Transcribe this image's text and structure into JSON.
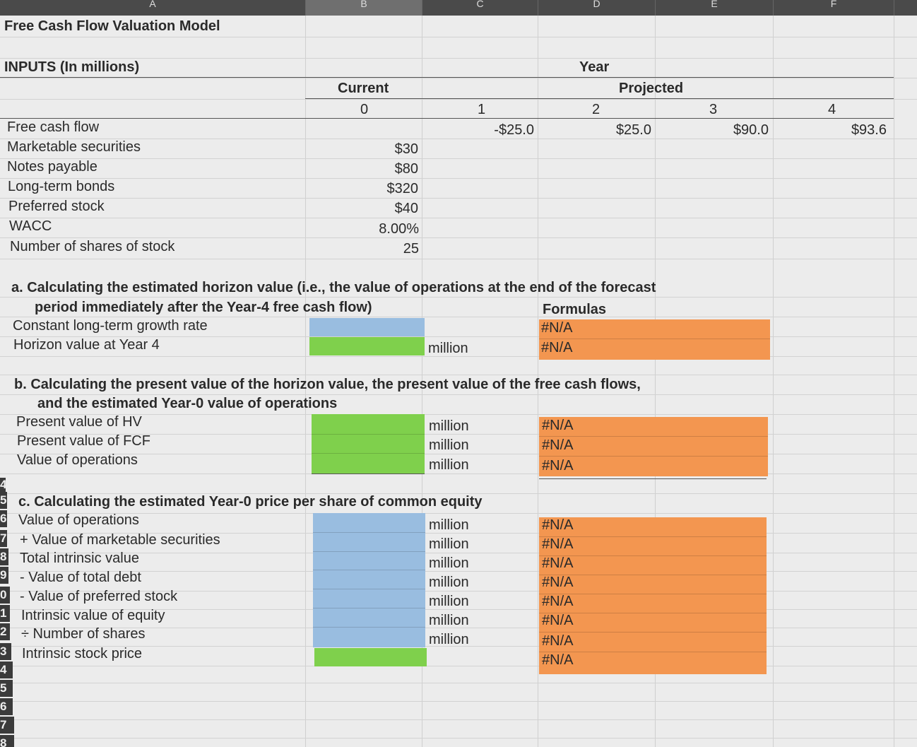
{
  "title": "Free Cash Flow Valuation Model",
  "column_headers": [
    "A",
    "B",
    "C",
    "D",
    "E",
    "F"
  ],
  "row_numbers": [
    "5",
    "6",
    "7",
    "8",
    "9",
    "0",
    "1",
    "2",
    "3",
    "4",
    "5",
    "6",
    "7",
    "8"
  ],
  "inputs": {
    "heading": "INPUTS (In millions)",
    "year_label": "Year",
    "current_label": "Current",
    "projected_label": "Projected",
    "years": [
      "0",
      "1",
      "2",
      "3",
      "4"
    ],
    "fcf_label": "Free cash flow",
    "fcf_values": [
      "-$25.0",
      "$25.0",
      "$90.0",
      "$93.6"
    ],
    "rows": [
      {
        "label": "Marketable securities",
        "value": "$30"
      },
      {
        "label": "Notes payable",
        "value": "$80"
      },
      {
        "label": "Long-term bonds",
        "value": "$320"
      },
      {
        "label": "Preferred stock",
        "value": "$40"
      },
      {
        "label": "WACC",
        "value": "8.00%"
      },
      {
        "label": "Number of shares of stock",
        "value": "25"
      }
    ]
  },
  "section_a": {
    "heading_line1": "a. Calculating the estimated horizon value (i.e., the value of operations at the end of the forecast",
    "heading_line2": "period immediately after the Year-4 free cash flow)",
    "formulas_label": "Formulas",
    "rows": [
      {
        "label": "Constant long-term growth rate",
        "unit": "",
        "formula": "#N/A"
      },
      {
        "label": "Horizon value at Year 4",
        "unit": "million",
        "formula": "#N/A"
      }
    ]
  },
  "section_b": {
    "heading_line1": "b. Calculating the present value of the horizon value, the present value of the free cash flows,",
    "heading_line2": "and the estimated Year-0 value of operations",
    "rows": [
      {
        "label": "Present value of HV",
        "unit": "million",
        "formula": "#N/A"
      },
      {
        "label": "Present value of FCF",
        "unit": "million",
        "formula": "#N/A"
      },
      {
        "label": "Value of operations",
        "unit": "million",
        "formula": "#N/A"
      }
    ]
  },
  "section_c": {
    "heading": "c. Calculating the estimated Year-0 price per share of common equity",
    "rows": [
      {
        "label": "Value of operations",
        "unit": "million",
        "formula": "#N/A"
      },
      {
        "label": "+ Value of marketable securities",
        "unit": "million",
        "formula": "#N/A"
      },
      {
        "label": "Total intrinsic value",
        "unit": "million",
        "formula": "#N/A"
      },
      {
        "label": "- Value of total debt",
        "unit": "million",
        "formula": "#N/A"
      },
      {
        "label": "- Value of preferred stock",
        "unit": "million",
        "formula": "#N/A"
      },
      {
        "label": "Intrinsic value of equity",
        "unit": "million",
        "formula": "#N/A"
      },
      {
        "label": "÷ Number of shares",
        "unit": "million",
        "formula": "#N/A"
      },
      {
        "label": "Intrinsic stock price",
        "unit": "",
        "formula": "#N/A"
      }
    ]
  },
  "colors": {
    "input_blue": "#99bde0",
    "output_green": "#7fd04c",
    "formula_orange": "#f39650",
    "header_dark": "#4a4a4a"
  }
}
